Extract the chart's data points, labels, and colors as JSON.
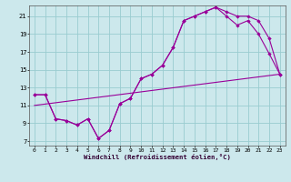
{
  "background_color": "#cce8ec",
  "grid_color": "#99ccd0",
  "line_color": "#990099",
  "xlabel": "Windchill (Refroidissement éolien,°C)",
  "xlim": [
    -0.5,
    23.5
  ],
  "ylim": [
    6.5,
    22.2
  ],
  "xticks": [
    0,
    1,
    2,
    3,
    4,
    5,
    6,
    7,
    8,
    9,
    10,
    11,
    12,
    13,
    14,
    15,
    16,
    17,
    18,
    19,
    20,
    21,
    22,
    23
  ],
  "yticks": [
    7,
    9,
    11,
    13,
    15,
    17,
    19,
    21
  ],
  "curve1_x": [
    0,
    1,
    2,
    3,
    4,
    5,
    6,
    7,
    8,
    9,
    10,
    11,
    12,
    13,
    14,
    15,
    16,
    17,
    18,
    19,
    20,
    21,
    22,
    23
  ],
  "curve1_y": [
    12.2,
    12.2,
    9.5,
    9.3,
    8.8,
    9.5,
    7.3,
    8.2,
    11.2,
    11.8,
    14.0,
    14.5,
    15.5,
    17.5,
    20.5,
    21.0,
    21.5,
    22.0,
    21.0,
    20.0,
    20.5,
    19.0,
    16.8,
    14.5
  ],
  "curve2_x": [
    0,
    1,
    2,
    3,
    4,
    5,
    6,
    7,
    8,
    9,
    10,
    11,
    12,
    13,
    14,
    15,
    16,
    17,
    18,
    19,
    20,
    21,
    22,
    23
  ],
  "curve2_y": [
    12.2,
    12.2,
    9.5,
    9.3,
    8.8,
    9.5,
    7.3,
    8.2,
    11.2,
    11.8,
    14.0,
    14.5,
    15.5,
    17.5,
    20.5,
    21.0,
    21.5,
    22.0,
    21.5,
    21.0,
    21.0,
    20.5,
    18.5,
    14.5
  ],
  "line3_x": [
    0,
    23
  ],
  "line3_y": [
    11.0,
    14.5
  ]
}
